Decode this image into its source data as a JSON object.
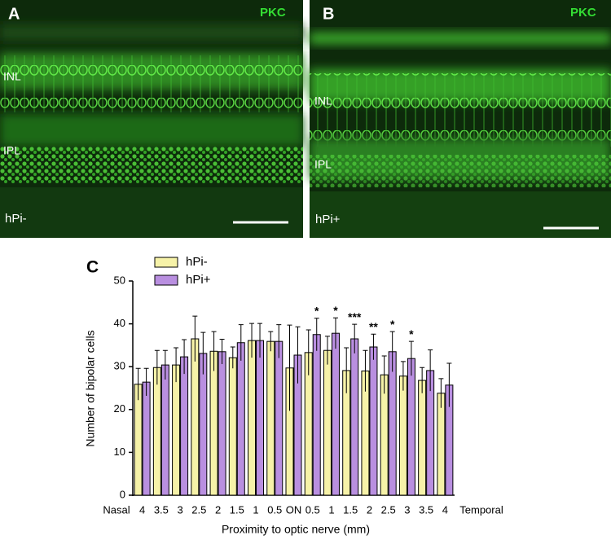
{
  "panels": [
    {
      "letter": "A",
      "stain": "PKC",
      "layer_top": "INL",
      "layer_bottom": "IPL",
      "group": "hPi-"
    },
    {
      "letter": "B",
      "stain": "PKC",
      "layer_top": "INL",
      "layer_bottom": "IPL",
      "group": "hPi+"
    }
  ],
  "chart_data": {
    "type": "bar",
    "panel_letter": "C",
    "y_label": "Number of bipolar cells",
    "x_label": "Proximity to optic nerve (mm)",
    "x_start_label": "Nasal",
    "x_end_label": "Temporal",
    "categories": [
      "4",
      "3.5",
      "3",
      "2.5",
      "2",
      "1.5",
      "1",
      "0.5",
      "ON",
      "0.5",
      "1",
      "1.5",
      "2",
      "2.5",
      "3",
      "3.5",
      "4"
    ],
    "series": [
      {
        "name": "hPi-",
        "color": "#f6f2a8",
        "values": [
          25.9,
          29.8,
          30.4,
          36.5,
          33.6,
          32.1,
          36.1,
          35.9,
          29.7,
          33.3,
          33.8,
          29.1,
          29.0,
          28.1,
          27.8,
          26.8,
          23.8
        ],
        "errors": [
          3.7,
          4.0,
          4.0,
          5.3,
          4.6,
          2.5,
          4.0,
          2.3,
          10.0,
          5.3,
          3.3,
          5.3,
          4.8,
          4.4,
          3.4,
          3.0,
          3.4
        ]
      },
      {
        "name": "hPi+",
        "color": "#b98fe0",
        "values": [
          26.4,
          30.4,
          32.3,
          33.1,
          33.5,
          35.6,
          36.1,
          35.9,
          32.7,
          37.5,
          37.8,
          36.5,
          34.6,
          33.5,
          31.9,
          29.1,
          25.7
        ],
        "errors": [
          3.2,
          3.4,
          4.0,
          4.9,
          2.9,
          4.2,
          4.0,
          3.9,
          6.6,
          3.8,
          3.6,
          3.4,
          3.0,
          4.7,
          4.0,
          4.8,
          5.1
        ]
      }
    ],
    "significance": [
      null,
      null,
      null,
      null,
      null,
      null,
      null,
      null,
      null,
      "*",
      "*",
      "***",
      "**",
      "*",
      "*",
      null,
      null
    ],
    "ylim": [
      0,
      50
    ],
    "yticks": [
      0,
      10,
      20,
      30,
      40,
      50
    ]
  }
}
